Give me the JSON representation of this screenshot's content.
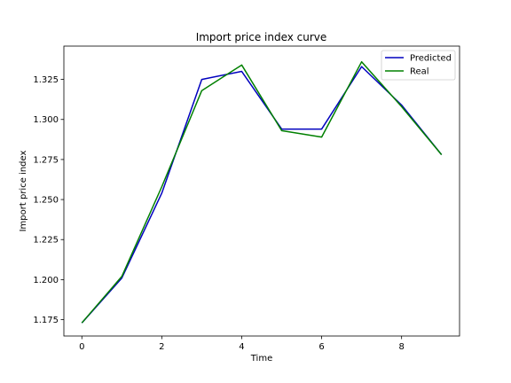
{
  "chart_data": {
    "type": "line",
    "title": "Import price index curve",
    "xlabel": "Time",
    "ylabel": "Import price index",
    "xlim": [
      -0.45,
      9.45
    ],
    "ylim": [
      1.1648,
      1.3458
    ],
    "xticks": [
      0,
      2,
      4,
      6,
      8
    ],
    "yticks": [
      1.175,
      1.2,
      1.225,
      1.25,
      1.275,
      1.3,
      1.325
    ],
    "xtick_labels": [
      "0",
      "2",
      "4",
      "6",
      "8"
    ],
    "ytick_labels": [
      "1.175",
      "1.200",
      "1.225",
      "1.250",
      "1.275",
      "1.300",
      "1.325"
    ],
    "grid": false,
    "legend_position": "top-right",
    "x": [
      0,
      1,
      2,
      3,
      4,
      5,
      6,
      7,
      8,
      9
    ],
    "series": [
      {
        "name": "Predicted",
        "color": "#0000bf",
        "values": [
          1.173,
          1.201,
          1.254,
          1.325,
          1.33,
          1.294,
          1.294,
          1.333,
          1.309,
          1.278
        ]
      },
      {
        "name": "Real",
        "color": "#008000",
        "values": [
          1.173,
          1.202,
          1.258,
          1.318,
          1.334,
          1.293,
          1.289,
          1.336,
          1.308,
          1.278
        ]
      }
    ]
  }
}
